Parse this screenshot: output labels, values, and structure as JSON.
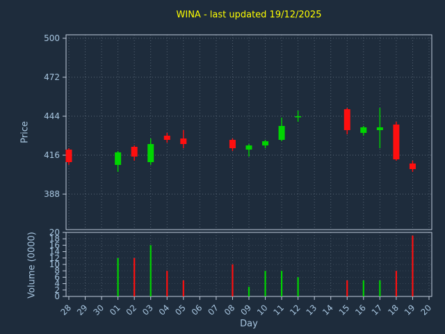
{
  "chart_data": {
    "type": "candlestick+volume",
    "title": "WINA - last updated 19/12/2025",
    "xlabel": "Day",
    "price_ylabel": "Price",
    "volume_ylabel": "Volume (0000)",
    "days": [
      "28",
      "29",
      "30",
      "01",
      "02",
      "03",
      "04",
      "05",
      "06",
      "07",
      "08",
      "09",
      "10",
      "11",
      "12",
      "13",
      "14",
      "15",
      "16",
      "17",
      "18",
      "19",
      "20"
    ],
    "price_ticks": [
      388,
      416,
      444,
      472,
      500
    ],
    "price_range": [
      362.5,
      502.5
    ],
    "volume_ticks": [
      0,
      2,
      4,
      6,
      8,
      10,
      12,
      14,
      16,
      18,
      20
    ],
    "volume_range": [
      0,
      20
    ],
    "grid": true,
    "candles": [
      {
        "day": "28",
        "open": 420,
        "high": 421,
        "low": 409,
        "close": 411,
        "volume": 0
      },
      {
        "day": "01",
        "open": 409,
        "high": 419,
        "low": 404,
        "close": 418,
        "volume": 12
      },
      {
        "day": "02",
        "open": 422,
        "high": 423,
        "low": 412,
        "close": 415,
        "volume": 12
      },
      {
        "day": "03",
        "open": 411,
        "high": 428,
        "low": 409,
        "close": 424,
        "volume": 16
      },
      {
        "day": "04",
        "open": 430,
        "high": 432,
        "low": 425,
        "close": 427,
        "volume": 8
      },
      {
        "day": "05",
        "open": 428,
        "high": 434,
        "low": 421,
        "close": 424,
        "volume": 5
      },
      {
        "day": "08",
        "open": 427,
        "high": 428,
        "low": 419,
        "close": 421,
        "volume": 10
      },
      {
        "day": "09",
        "open": 420,
        "high": 424,
        "low": 415,
        "close": 423,
        "volume": 3
      },
      {
        "day": "10",
        "open": 423,
        "high": 427,
        "low": 421,
        "close": 426,
        "volume": 8
      },
      {
        "day": "11",
        "open": 427,
        "high": 443,
        "low": 426,
        "close": 437,
        "volume": 8
      },
      {
        "day": "12",
        "open": 444,
        "high": 448,
        "low": 440,
        "close": 444,
        "volume": 6
      },
      {
        "day": "15",
        "open": 449,
        "high": 450,
        "low": 431,
        "close": 434,
        "volume": 5
      },
      {
        "day": "16",
        "open": 432,
        "high": 437,
        "low": 430,
        "close": 436,
        "volume": 5
      },
      {
        "day": "17",
        "open": 434,
        "high": 450,
        "low": 421,
        "close": 436,
        "volume": 5
      },
      {
        "day": "18",
        "open": 438,
        "high": 440,
        "low": 412,
        "close": 413,
        "volume": 8
      },
      {
        "day": "19",
        "open": 410,
        "high": 412,
        "low": 404,
        "close": 406,
        "volume": 19
      }
    ]
  },
  "colors": {
    "background": "#1e2c3c",
    "up": "#00d500",
    "down": "#ff0f0f",
    "grid": "#5a6878",
    "axis": "#c3cede",
    "tick_label": "#a8c6e0",
    "title": "#ffff00"
  }
}
